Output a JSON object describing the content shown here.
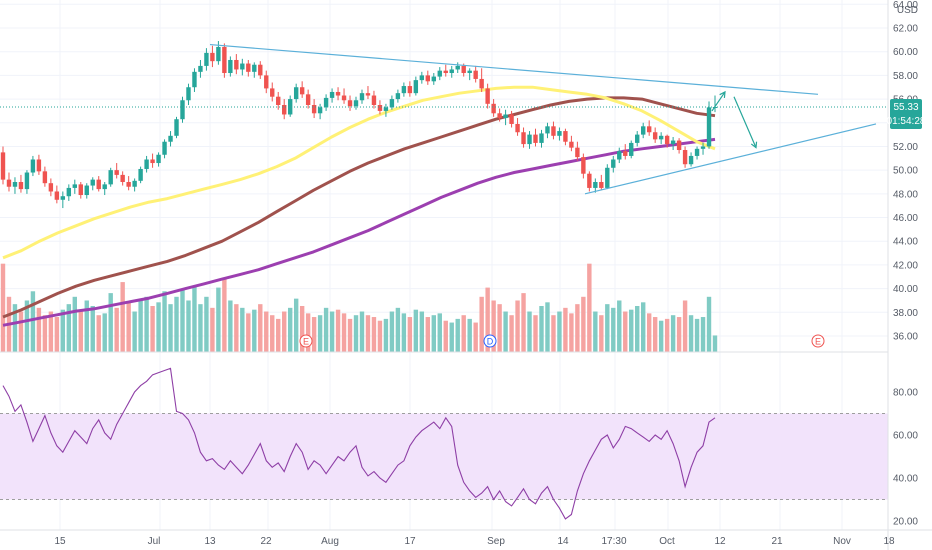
{
  "price_axis": {
    "currency": "USD",
    "ticks": [
      "64.00",
      "62.00",
      "60.00",
      "58.00",
      "56.00",
      "54.00",
      "52.00",
      "50.00",
      "48.00",
      "46.00",
      "44.00",
      "42.00",
      "40.00",
      "38.00",
      "36.00"
    ],
    "last_price": "55.33",
    "countdown": "01:54:28"
  },
  "rsi_axis": {
    "ticks": [
      "80.00",
      "60.00",
      "40.00",
      "20.00"
    ],
    "upper": 70,
    "lower": 30
  },
  "time_axis": {
    "labels": [
      "15",
      "Jul",
      "13",
      "22",
      "Aug",
      "17",
      "Sep",
      "14",
      "17:30",
      "Oct",
      "12",
      "21",
      "Nov",
      "18"
    ]
  },
  "events": [
    {
      "label": "E",
      "color": "#ef5350"
    },
    {
      "label": "D",
      "color": "#2962ff"
    },
    {
      "label": "E",
      "color": "#ef5350"
    }
  ],
  "chart_data": {
    "type": "candlestick",
    "price_range": [
      35,
      64
    ],
    "rsi_range": [
      15,
      95
    ],
    "ohlc": [
      [
        51.5,
        52.0,
        48.8,
        49.2
      ],
      [
        49.2,
        49.8,
        48.2,
        48.6
      ],
      [
        48.6,
        49.4,
        48.0,
        49.0
      ],
      [
        49.0,
        49.6,
        48.1,
        48.4
      ],
      [
        48.4,
        50.0,
        48.0,
        49.8
      ],
      [
        49.8,
        51.2,
        49.5,
        50.9
      ],
      [
        50.9,
        51.3,
        49.6,
        49.9
      ],
      [
        49.9,
        50.3,
        48.6,
        48.9
      ],
      [
        48.9,
        49.3,
        47.8,
        48.2
      ],
      [
        48.2,
        48.7,
        47.2,
        47.5
      ],
      [
        47.5,
        48.2,
        46.8,
        47.8
      ],
      [
        47.8,
        48.8,
        47.4,
        48.5
      ],
      [
        48.5,
        49.2,
        48.0,
        48.8
      ],
      [
        48.8,
        49.0,
        47.6,
        47.9
      ],
      [
        47.9,
        48.9,
        47.6,
        48.7
      ],
      [
        48.7,
        49.4,
        48.3,
        49.2
      ],
      [
        49.2,
        49.5,
        48.2,
        48.4
      ],
      [
        48.4,
        49.0,
        47.9,
        48.8
      ],
      [
        48.8,
        50.2,
        48.6,
        50.0
      ],
      [
        50.0,
        50.6,
        49.3,
        49.6
      ],
      [
        49.6,
        49.9,
        48.7,
        49.0
      ],
      [
        49.0,
        49.5,
        48.3,
        48.6
      ],
      [
        48.6,
        49.3,
        48.2,
        49.1
      ],
      [
        49.1,
        50.3,
        48.9,
        50.1
      ],
      [
        50.1,
        51.2,
        49.8,
        50.9
      ],
      [
        50.9,
        51.4,
        50.2,
        50.6
      ],
      [
        50.6,
        51.5,
        50.3,
        51.3
      ],
      [
        51.3,
        52.6,
        51.0,
        52.4
      ],
      [
        52.4,
        53.3,
        52.0,
        52.9
      ],
      [
        52.9,
        54.5,
        52.7,
        54.3
      ],
      [
        54.3,
        56.2,
        54.0,
        55.9
      ],
      [
        55.9,
        57.3,
        55.5,
        57.0
      ],
      [
        57.0,
        58.6,
        56.6,
        58.3
      ],
      [
        58.3,
        59.3,
        57.8,
        58.8
      ],
      [
        58.8,
        60.3,
        58.4,
        59.9
      ],
      [
        59.9,
        60.5,
        58.7,
        59.2
      ],
      [
        59.2,
        60.9,
        58.9,
        60.4
      ],
      [
        60.4,
        60.7,
        57.8,
        58.2
      ],
      [
        58.2,
        59.6,
        57.9,
        59.3
      ],
      [
        59.3,
        59.8,
        58.1,
        58.5
      ],
      [
        58.5,
        59.4,
        58.0,
        59.0
      ],
      [
        59.0,
        59.3,
        57.9,
        58.3
      ],
      [
        58.3,
        59.1,
        57.8,
        58.9
      ],
      [
        58.9,
        59.2,
        57.7,
        58.0
      ],
      [
        58.0,
        58.4,
        56.5,
        56.9
      ],
      [
        56.9,
        57.4,
        55.8,
        56.2
      ],
      [
        56.2,
        56.6,
        55.1,
        55.5
      ],
      [
        55.5,
        56.0,
        54.3,
        54.7
      ],
      [
        54.7,
        56.3,
        54.5,
        56.0
      ],
      [
        56.0,
        57.3,
        55.7,
        57.0
      ],
      [
        57.0,
        57.5,
        56.1,
        56.4
      ],
      [
        56.4,
        56.8,
        55.2,
        55.5
      ],
      [
        55.5,
        56.0,
        54.4,
        54.8
      ],
      [
        54.8,
        55.6,
        54.3,
        55.3
      ],
      [
        55.3,
        56.4,
        55.0,
        56.1
      ],
      [
        56.1,
        56.9,
        55.7,
        56.6
      ],
      [
        56.6,
        57.0,
        55.9,
        56.3
      ],
      [
        56.3,
        56.9,
        55.6,
        55.9
      ],
      [
        55.9,
        56.3,
        55.0,
        55.4
      ],
      [
        55.4,
        56.2,
        55.1,
        55.9
      ],
      [
        55.9,
        56.8,
        55.6,
        56.5
      ],
      [
        56.5,
        57.1,
        56.0,
        56.3
      ],
      [
        56.3,
        56.7,
        55.2,
        55.5
      ],
      [
        55.5,
        55.9,
        54.7,
        55.0
      ],
      [
        55.0,
        55.6,
        54.5,
        55.3
      ],
      [
        55.3,
        56.3,
        55.1,
        56.0
      ],
      [
        56.0,
        56.8,
        55.7,
        56.5
      ],
      [
        56.5,
        57.4,
        56.2,
        57.1
      ],
      [
        57.1,
        57.5,
        56.2,
        56.5
      ],
      [
        56.5,
        57.9,
        56.3,
        57.6
      ],
      [
        57.6,
        58.3,
        57.3,
        58.0
      ],
      [
        58.0,
        58.4,
        57.2,
        57.5
      ],
      [
        57.5,
        58.2,
        57.2,
        57.9
      ],
      [
        57.9,
        58.7,
        57.6,
        58.4
      ],
      [
        58.4,
        58.9,
        57.9,
        58.2
      ],
      [
        58.2,
        58.8,
        57.8,
        58.5
      ],
      [
        58.5,
        59.1,
        58.2,
        58.8
      ],
      [
        58.8,
        59.0,
        57.9,
        58.2
      ],
      [
        58.2,
        58.6,
        57.6,
        58.4
      ],
      [
        58.4,
        58.8,
        57.4,
        57.7
      ],
      [
        57.7,
        58.6,
        56.6,
        56.9
      ],
      [
        56.9,
        57.3,
        55.2,
        55.6
      ],
      [
        55.6,
        56.0,
        54.5,
        54.8
      ],
      [
        54.8,
        55.2,
        54.1,
        54.4
      ],
      [
        54.4,
        55.1,
        53.8,
        54.7
      ],
      [
        54.7,
        55.0,
        53.6,
        53.9
      ],
      [
        53.9,
        54.4,
        52.9,
        53.2
      ],
      [
        53.2,
        53.6,
        51.9,
        52.2
      ],
      [
        52.2,
        53.3,
        51.8,
        53.0
      ],
      [
        53.0,
        53.5,
        52.0,
        52.3
      ],
      [
        52.3,
        53.4,
        51.9,
        53.1
      ],
      [
        53.1,
        54.0,
        52.7,
        53.7
      ],
      [
        53.7,
        54.1,
        52.6,
        52.9
      ],
      [
        52.9,
        53.6,
        52.5,
        53.3
      ],
      [
        53.3,
        53.5,
        52.1,
        52.4
      ],
      [
        52.4,
        52.9,
        51.6,
        51.9
      ],
      [
        51.9,
        52.4,
        50.8,
        51.1
      ],
      [
        51.1,
        51.4,
        49.3,
        49.7
      ],
      [
        49.7,
        49.9,
        48.2,
        48.5
      ],
      [
        48.5,
        49.3,
        48.1,
        49.0
      ],
      [
        49.0,
        49.6,
        48.3,
        48.5
      ],
      [
        48.5,
        50.5,
        48.4,
        50.2
      ],
      [
        50.2,
        51.2,
        49.8,
        50.9
      ],
      [
        50.9,
        51.9,
        50.6,
        51.6
      ],
      [
        51.6,
        52.2,
        50.9,
        51.2
      ],
      [
        51.2,
        52.5,
        51.0,
        52.3
      ],
      [
        52.3,
        53.3,
        52.0,
        53.0
      ],
      [
        53.0,
        54.0,
        52.7,
        53.7
      ],
      [
        53.7,
        54.2,
        52.9,
        53.2
      ],
      [
        53.2,
        53.6,
        52.3,
        52.6
      ],
      [
        52.6,
        53.2,
        52.2,
        52.9
      ],
      [
        52.9,
        53.0,
        51.9,
        52.2
      ],
      [
        52.2,
        52.8,
        51.7,
        52.5
      ],
      [
        52.5,
        52.7,
        51.4,
        51.7
      ],
      [
        51.7,
        52.0,
        50.2,
        50.5
      ],
      [
        50.5,
        51.5,
        50.3,
        51.2
      ],
      [
        51.2,
        52.0,
        50.9,
        51.8
      ],
      [
        51.8,
        52.3,
        51.3,
        52.0
      ],
      [
        52.0,
        55.8,
        51.8,
        55.3
      ],
      [
        55.3,
        56.3,
        54.9,
        55.33
      ]
    ],
    "volume": [
      48,
      30,
      26,
      22,
      28,
      33,
      24,
      20,
      22,
      19,
      23,
      26,
      30,
      22,
      28,
      25,
      20,
      21,
      32,
      24,
      38,
      27,
      22,
      28,
      30,
      25,
      27,
      33,
      26,
      30,
      34,
      28,
      36,
      26,
      30,
      24,
      35,
      40,
      28,
      26,
      24,
      21,
      23,
      26,
      22,
      20,
      18,
      22,
      24,
      29,
      25,
      21,
      19,
      20,
      24,
      22,
      23,
      21,
      18,
      20,
      22,
      20,
      19,
      17,
      18,
      22,
      24,
      21,
      19,
      23,
      22,
      19,
      20,
      21,
      17,
      16,
      18,
      20,
      18,
      16,
      30,
      35,
      28,
      26,
      22,
      20,
      28,
      32,
      22,
      20,
      25,
      27,
      20,
      22,
      24,
      21,
      26,
      30,
      48,
      22,
      20,
      26,
      24,
      28,
      22,
      23,
      25,
      27,
      21,
      19,
      17,
      18,
      20,
      19,
      28,
      20,
      18,
      19,
      30,
      9
    ],
    "volume_axis_max": 50,
    "ema_yellow": [
      42.6,
      43.2,
      44.0,
      44.7,
      45.3,
      45.9,
      46.4,
      46.9,
      47.3,
      47.6,
      48.0,
      48.4,
      48.8,
      49.2,
      49.7,
      50.3,
      51.0,
      51.9,
      52.8,
      53.6,
      54.3,
      54.9,
      55.4,
      55.9,
      56.2,
      56.5,
      56.7,
      56.9,
      57.0,
      57.0,
      56.8,
      56.6,
      56.4,
      56.1,
      55.6,
      55.0,
      54.2,
      53.3,
      52.4,
      51.8
    ],
    "ema_brown": [
      37.6,
      38.2,
      38.9,
      39.6,
      40.2,
      40.7,
      41.1,
      41.5,
      41.9,
      42.3,
      42.8,
      43.4,
      44.0,
      44.8,
      45.6,
      46.5,
      47.4,
      48.3,
      49.1,
      49.9,
      50.6,
      51.2,
      51.8,
      52.3,
      52.8,
      53.3,
      53.8,
      54.3,
      54.7,
      55.1,
      55.5,
      55.8,
      56.0,
      56.1,
      56.1,
      56.0,
      55.6,
      55.2,
      54.8,
      54.6
    ],
    "ema_purple": [
      36.9,
      37.2,
      37.5,
      37.8,
      38.1,
      38.3,
      38.6,
      38.9,
      39.2,
      39.6,
      40.0,
      40.4,
      40.8,
      41.2,
      41.6,
      42.1,
      42.6,
      43.1,
      43.7,
      44.3,
      44.9,
      45.6,
      46.3,
      47.0,
      47.7,
      48.3,
      48.9,
      49.4,
      49.8,
      50.1,
      50.4,
      50.7,
      51.0,
      51.3,
      51.6,
      51.8,
      52.0,
      52.2,
      52.4,
      52.6
    ],
    "rsi": [
      83,
      78,
      71,
      74,
      66,
      57,
      63,
      69,
      61,
      55,
      52,
      57,
      62,
      59,
      56,
      63,
      67,
      61,
      58,
      65,
      70,
      75,
      80,
      83,
      85,
      88,
      89,
      90,
      91,
      71,
      70,
      67,
      61,
      52,
      48,
      49,
      46,
      44,
      48,
      45,
      42,
      46,
      51,
      56,
      48,
      45,
      47,
      43,
      50,
      56,
      52,
      44,
      48,
      46,
      42,
      46,
      50,
      48,
      52,
      55,
      45,
      41,
      43,
      40,
      38,
      42,
      46,
      48,
      55,
      59,
      62,
      64,
      66,
      63,
      68,
      64,
      46,
      38,
      34,
      31,
      33,
      36,
      30,
      34,
      29,
      27,
      31,
      35,
      30,
      28,
      33,
      36,
      30,
      26,
      21,
      23,
      34,
      42,
      48,
      53,
      58,
      60,
      54,
      58,
      64,
      63,
      61,
      59,
      57,
      60,
      58,
      62,
      56,
      48,
      36,
      45,
      52,
      55,
      66,
      68
    ],
    "trendline_upper": [
      [
        210,
        60.6
      ],
      [
        818,
        56.4
      ]
    ],
    "trendline_lower": [
      [
        585,
        48.0
      ],
      [
        876,
        53.9
      ]
    ],
    "projection_arrows": [
      [
        [
          712,
          55.0
        ],
        [
          725,
          56.6
        ]
      ],
      [
        [
          734,
          56.2
        ],
        [
          756,
          51.9
        ]
      ]
    ]
  },
  "colors": {
    "up": "#26a69a",
    "down": "#ef5350",
    "ema_yellow": "#fff176",
    "ema_brown": "#a0524d",
    "ema_purple": "#9c3fb0",
    "trend": "#5bb0d9",
    "arrow": "#26a69a",
    "rsi_line": "#8e3fa6",
    "rsi_band": "#f2e3fb",
    "price_tag": "#26a69a",
    "vol_up": "#80cbc4",
    "vol_down": "#f5a3a1"
  }
}
